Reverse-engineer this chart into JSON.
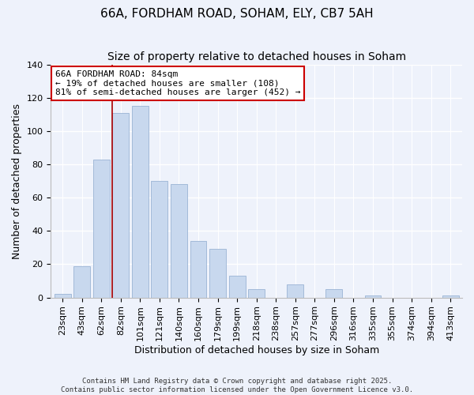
{
  "title": "66A, FORDHAM ROAD, SOHAM, ELY, CB7 5AH",
  "subtitle": "Size of property relative to detached houses in Soham",
  "xlabel": "Distribution of detached houses by size in Soham",
  "ylabel": "Number of detached properties",
  "categories": [
    "23sqm",
    "43sqm",
    "62sqm",
    "82sqm",
    "101sqm",
    "121sqm",
    "140sqm",
    "160sqm",
    "179sqm",
    "199sqm",
    "218sqm",
    "238sqm",
    "257sqm",
    "277sqm",
    "296sqm",
    "316sqm",
    "335sqm",
    "355sqm",
    "374sqm",
    "394sqm",
    "413sqm"
  ],
  "values": [
    2,
    19,
    83,
    111,
    115,
    70,
    68,
    34,
    29,
    13,
    5,
    0,
    8,
    0,
    5,
    0,
    1,
    0,
    0,
    0,
    1
  ],
  "bar_color": "#c8d8ee",
  "bar_edge_color": "#9ab4d4",
  "highlight_bar_color": "#c8d8ee",
  "highlight_index": 3,
  "highlight_line_color": "#aa0000",
  "annotation_title": "66A FORDHAM ROAD: 84sqm",
  "annotation_line1": "← 19% of detached houses are smaller (108)",
  "annotation_line2": "81% of semi-detached houses are larger (452) →",
  "annotation_box_facecolor": "#ffffff",
  "annotation_box_edgecolor": "#cc0000",
  "ylim": [
    0,
    140
  ],
  "yticks": [
    0,
    20,
    40,
    60,
    80,
    100,
    120,
    140
  ],
  "footer_line1": "Contains HM Land Registry data © Crown copyright and database right 2025.",
  "footer_line2": "Contains public sector information licensed under the Open Government Licence v3.0.",
  "background_color": "#eef2fb",
  "grid_color": "#ffffff",
  "title_fontsize": 11,
  "subtitle_fontsize": 10,
  "tick_fontsize": 8,
  "axis_label_fontsize": 9,
  "annotation_fontsize": 8,
  "footer_fontsize": 6.5
}
